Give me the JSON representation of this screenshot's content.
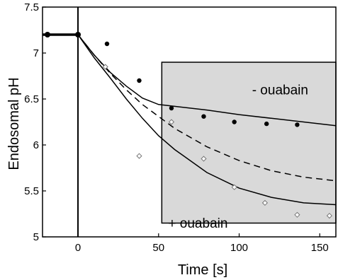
{
  "chart_data": {
    "type": "scatter",
    "xlabel": "Time [s]",
    "ylabel": "Endosomal pH",
    "xlim": [
      -22,
      160
    ],
    "ylim": [
      5,
      7.5
    ],
    "xticks": [
      0,
      50,
      100,
      150
    ],
    "yticks": [
      5,
      5.5,
      6,
      6.5,
      7,
      7.5
    ],
    "ytick_labels": [
      "5",
      "5.5",
      "6",
      "6.5",
      "7",
      "7.5"
    ],
    "shaded_region": {
      "x": [
        52,
        160
      ],
      "y": [
        5.15,
        6.9
      ],
      "color": "#d9d9d9"
    },
    "vertical_line_x": 0,
    "series": [
      {
        "marker": "filled-circle",
        "points": [
          {
            "x": 18,
            "y": 7.1
          },
          {
            "x": 38,
            "y": 6.7
          },
          {
            "x": 58,
            "y": 6.4
          },
          {
            "x": 78,
            "y": 6.31
          },
          {
            "x": 97,
            "y": 6.25
          },
          {
            "x": 117,
            "y": 6.23
          },
          {
            "x": 136,
            "y": 6.22
          }
        ]
      },
      {
        "marker": "open-diamond",
        "points": [
          {
            "x": 17,
            "y": 6.85
          },
          {
            "x": 38,
            "y": 5.88
          },
          {
            "x": 58,
            "y": 6.25
          },
          {
            "x": 78,
            "y": 5.85
          },
          {
            "x": 97,
            "y": 5.54
          },
          {
            "x": 116,
            "y": 5.37
          },
          {
            "x": 136,
            "y": 5.24
          },
          {
            "x": 156,
            "y": 5.23
          }
        ]
      }
    ],
    "lines": [
      {
        "style": "solid",
        "points": [
          {
            "x": -22,
            "y": 7.2
          },
          {
            "x": 0,
            "y": 7.2
          },
          {
            "x": 10,
            "y": 6.98
          },
          {
            "x": 20,
            "y": 6.79
          },
          {
            "x": 30,
            "y": 6.64
          },
          {
            "x": 40,
            "y": 6.51
          },
          {
            "x": 50,
            "y": 6.44
          },
          {
            "x": 60,
            "y": 6.42
          },
          {
            "x": 80,
            "y": 6.38
          },
          {
            "x": 100,
            "y": 6.33
          },
          {
            "x": 120,
            "y": 6.29
          },
          {
            "x": 140,
            "y": 6.25
          },
          {
            "x": 160,
            "y": 6.21
          }
        ]
      },
      {
        "style": "dashed",
        "points": [
          {
            "x": 0,
            "y": 7.2
          },
          {
            "x": 10,
            "y": 6.98
          },
          {
            "x": 20,
            "y": 6.78
          },
          {
            "x": 30,
            "y": 6.6
          },
          {
            "x": 40,
            "y": 6.44
          },
          {
            "x": 60,
            "y": 6.18
          },
          {
            "x": 80,
            "y": 5.98
          },
          {
            "x": 100,
            "y": 5.83
          },
          {
            "x": 120,
            "y": 5.72
          },
          {
            "x": 140,
            "y": 5.65
          },
          {
            "x": 160,
            "y": 5.61
          }
        ]
      },
      {
        "style": "solid",
        "points": [
          {
            "x": 0,
            "y": 7.2
          },
          {
            "x": 10,
            "y": 6.95
          },
          {
            "x": 20,
            "y": 6.73
          },
          {
            "x": 30,
            "y": 6.5
          },
          {
            "x": 40,
            "y": 6.29
          },
          {
            "x": 50,
            "y": 6.1
          },
          {
            "x": 60,
            "y": 5.95
          },
          {
            "x": 80,
            "y": 5.7
          },
          {
            "x": 100,
            "y": 5.53
          },
          {
            "x": 120,
            "y": 5.43
          },
          {
            "x": 140,
            "y": 5.37
          },
          {
            "x": 160,
            "y": 5.35
          }
        ]
      }
    ],
    "annotations": [
      {
        "text": "- ouabain",
        "x": 108,
        "y": 6.55
      },
      {
        "text": "+ ouabain",
        "x": 56,
        "y": 5.1
      }
    ]
  }
}
